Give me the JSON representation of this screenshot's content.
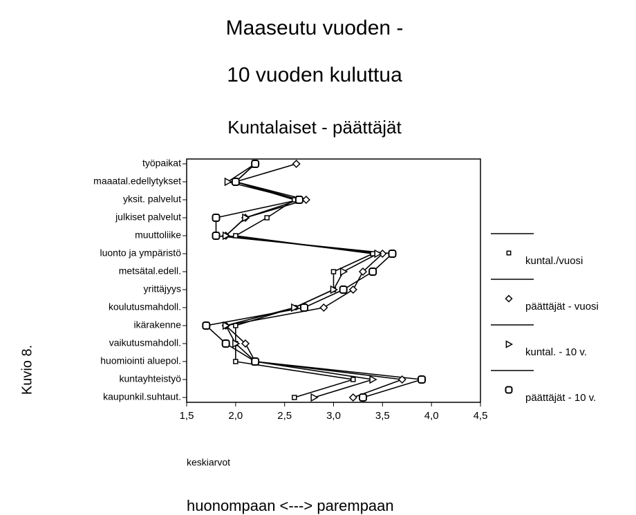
{
  "chart_data": {
    "type": "line",
    "orientation": "horizontal",
    "title": [
      "Maaseutu vuoden -",
      "10 vuoden kuluttua"
    ],
    "subtitle": "Kuntalaiset - päättäjät",
    "xlabel": "keskiarvot",
    "annotation": "huonompaan  <---> parempaan",
    "side_label": "Kuvio 8.",
    "categories": [
      "työpaikat",
      "maaatal.edellytykset",
      "yksit. palvelut",
      "julkiset palvelut",
      "muuttoliike",
      "luonto ja ympäristö",
      "metsätal.edell.",
      "yrittäjyys",
      "koulutusmahdoll.",
      "ikärakenne",
      "vaikutusmahdoll.",
      "huomiointi aluepol.",
      "kuntayhteistyö",
      "kaupunkil.suhtaut."
    ],
    "series": [
      {
        "name": "kuntal./vuosi",
        "color": "#000000",
        "marker": "square",
        "values": [
          2.2,
          2.0,
          2.6,
          2.32,
          2.0,
          3.4,
          3.0,
          3.0,
          2.6,
          2.0,
          2.0,
          2.0,
          3.2,
          2.6
        ]
      },
      {
        "name": "päättäjät - vuosi",
        "color": "#000000",
        "marker": "diamond",
        "values": [
          2.62,
          2.0,
          2.72,
          2.1,
          1.9,
          3.5,
          3.3,
          3.2,
          2.9,
          1.9,
          2.1,
          2.2,
          3.7,
          3.2
        ]
      },
      {
        "name": "kuntal. - 10 v.",
        "color": "#000000",
        "marker": "triangle",
        "values": [
          2.2,
          1.92,
          2.65,
          2.1,
          1.9,
          3.45,
          3.1,
          3.0,
          2.6,
          1.9,
          2.0,
          2.2,
          3.4,
          2.8
        ]
      },
      {
        "name": "päättäjät -  10 v.",
        "color": "#000000",
        "marker": "roundsquare",
        "values": [
          2.2,
          2.0,
          2.65,
          1.8,
          1.8,
          3.6,
          3.4,
          3.1,
          2.7,
          1.7,
          1.9,
          2.2,
          3.9,
          3.3
        ]
      }
    ],
    "xlim": [
      1.5,
      4.5
    ],
    "xticks": [
      {
        "value": 1.5,
        "label": "1,5"
      },
      {
        "value": 2.0,
        "label": "2,0"
      },
      {
        "value": 2.5,
        "label": "2,5"
      },
      {
        "value": 3.0,
        "label": "3,0"
      },
      {
        "value": 3.5,
        "label": "3,5"
      },
      {
        "value": 4.0,
        "label": "4,0"
      },
      {
        "value": 4.5,
        "label": "4,5"
      }
    ],
    "grid": false,
    "legend": "right"
  }
}
